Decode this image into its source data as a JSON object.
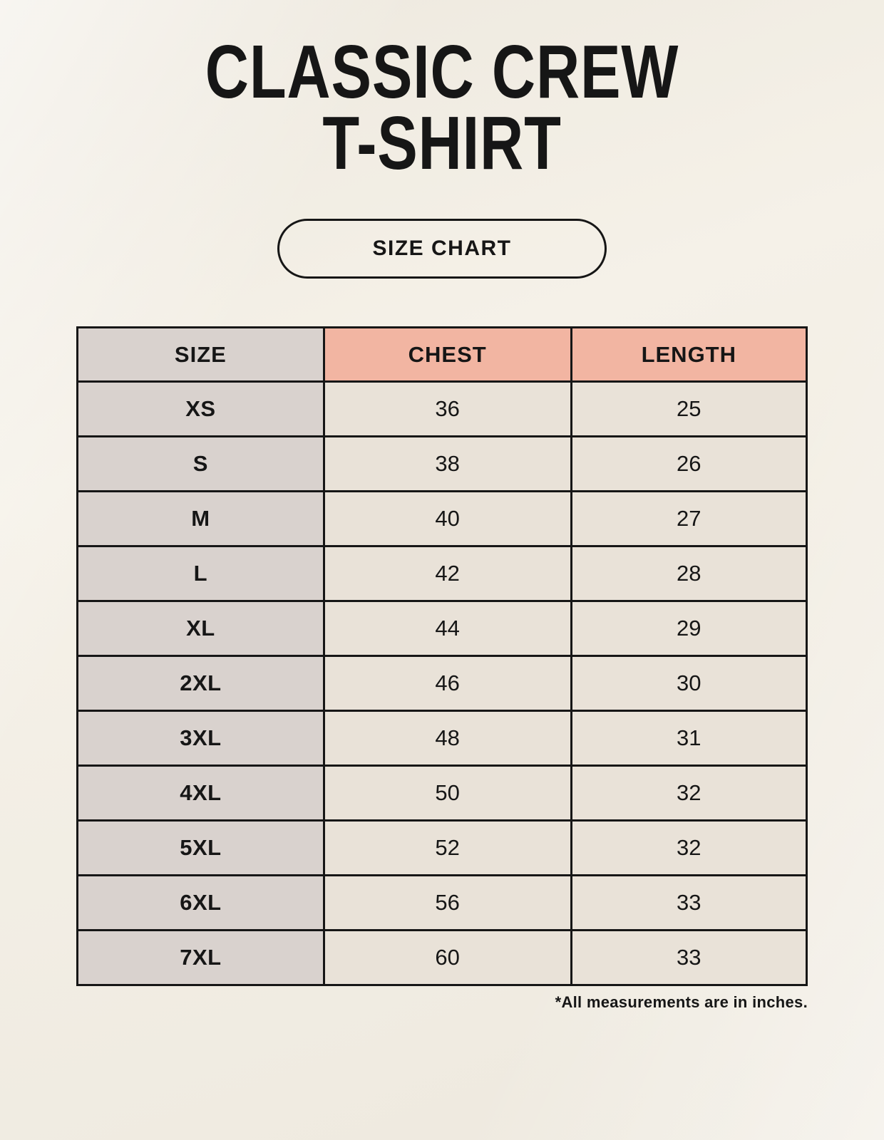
{
  "page": {
    "title_line1": "CLASSIC CREW",
    "title_line2": "T-SHIRT",
    "badge_label": "SIZE CHART",
    "footnote": "*All measurements are in inches."
  },
  "colors": {
    "page_background": "#f5f1e8",
    "header_accent_salmon": "#f2b5a2",
    "size_column_gray": "#d9d2ce",
    "data_cell_beige": "#e9e2d8",
    "border_black": "#161616",
    "text_black": "#161616"
  },
  "chart_data": {
    "type": "table",
    "title": "CLASSIC CREW T-SHIRT",
    "subtitle": "SIZE CHART",
    "columns": [
      "SIZE",
      "CHEST",
      "LENGTH"
    ],
    "units": "inches",
    "rows": [
      [
        "XS",
        36,
        25
      ],
      [
        "S",
        38,
        26
      ],
      [
        "M",
        40,
        27
      ],
      [
        "L",
        42,
        28
      ],
      [
        "XL",
        44,
        29
      ],
      [
        "2XL",
        46,
        30
      ],
      [
        "3XL",
        48,
        31
      ],
      [
        "4XL",
        50,
        32
      ],
      [
        "5XL",
        52,
        32
      ],
      [
        "6XL",
        56,
        33
      ],
      [
        "7XL",
        60,
        33
      ]
    ],
    "note": "*All measurements are in inches."
  }
}
